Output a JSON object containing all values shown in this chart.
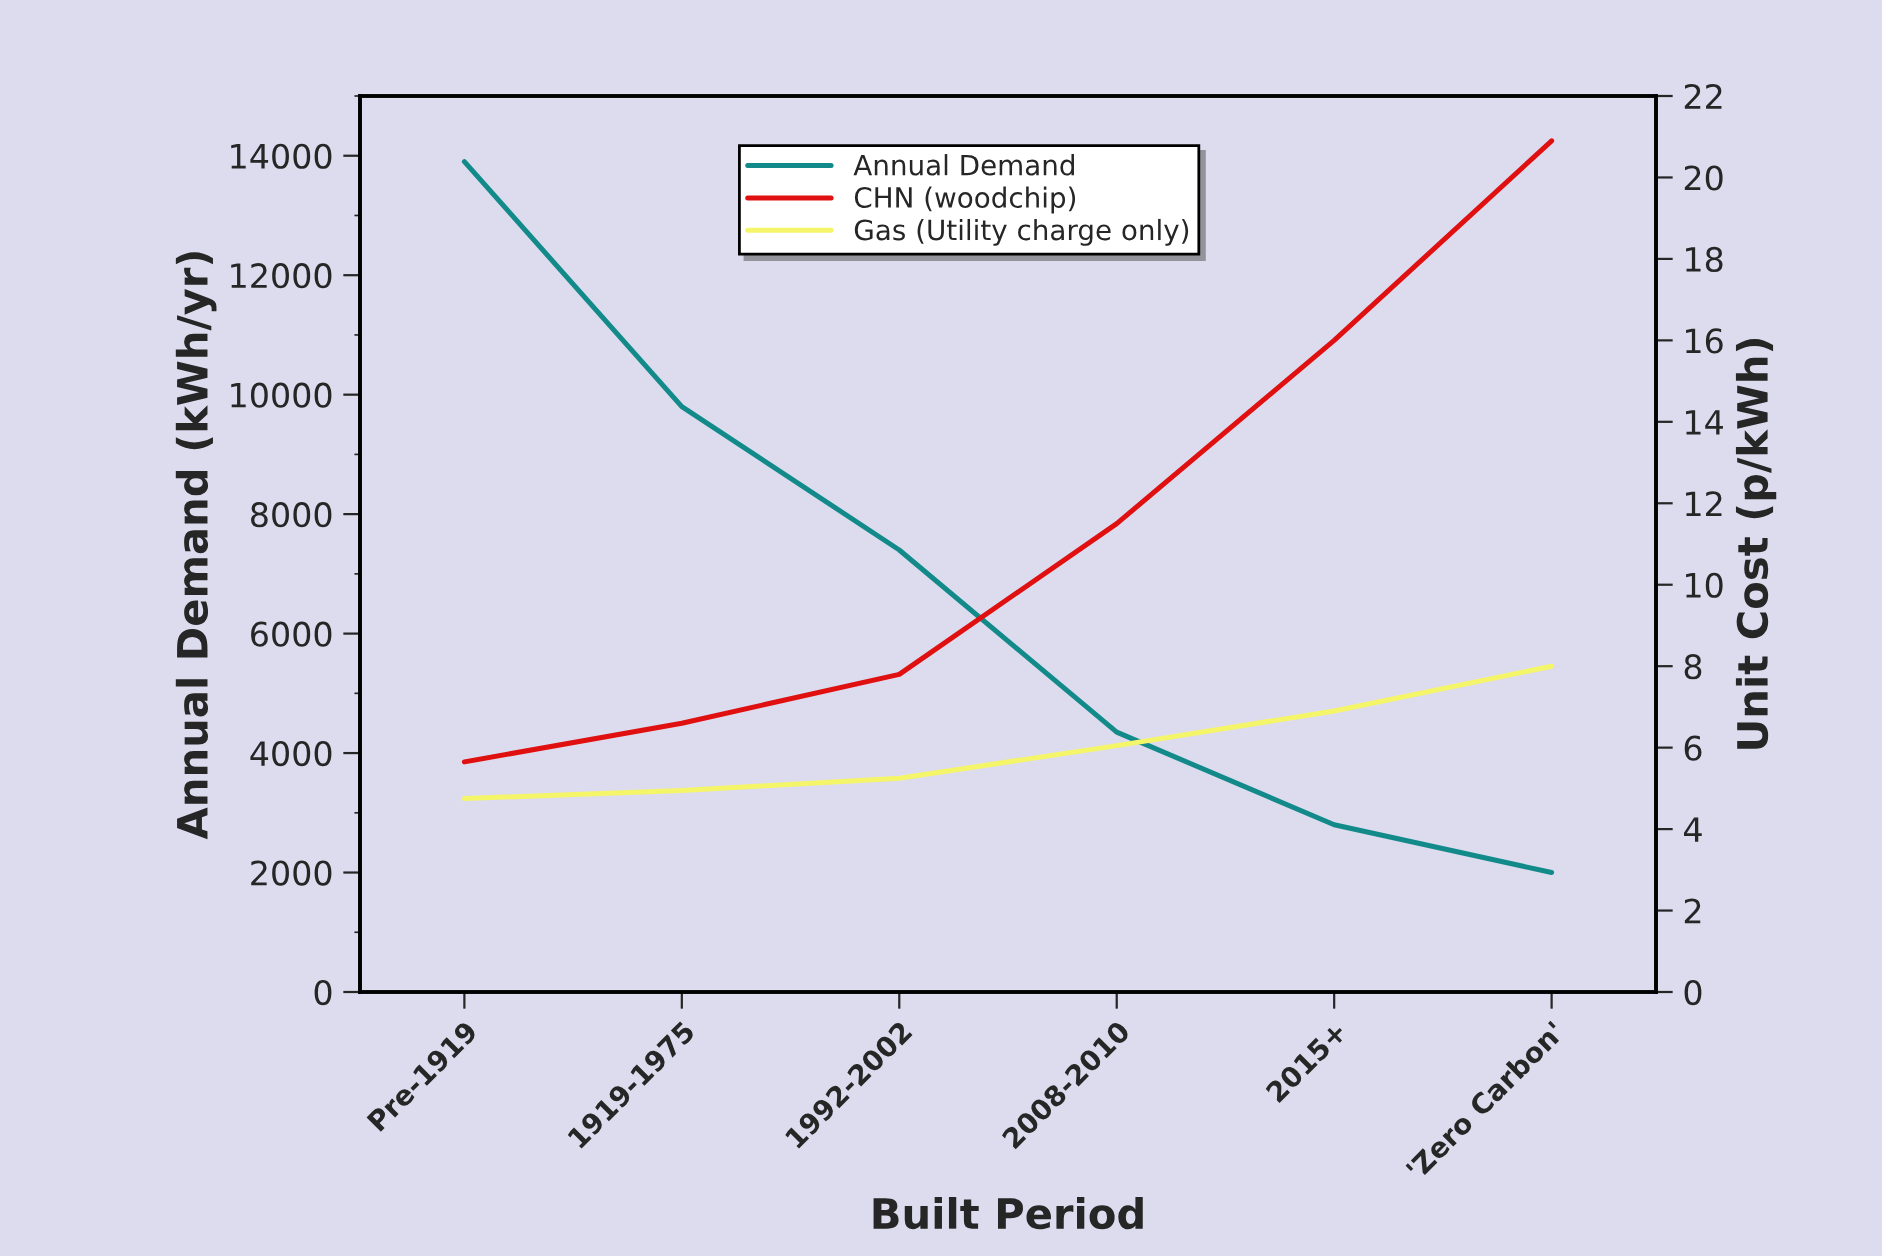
{
  "chart_data": {
    "type": "line",
    "xlabel": "Built Period",
    "ylabel": "Annual Demand (kWh/yr)",
    "y2label": "Unit Cost (p/kWh)",
    "categories": [
      "Pre-1919",
      "1919-1975",
      "1992-2002",
      "2008-2010",
      "2015+",
      "'Zero Carbon'"
    ],
    "series": [
      {
        "name": "Annual Demand",
        "color": "#138a8a",
        "values": [
          13900,
          9800,
          7400,
          4350,
          2800,
          2000
        ]
      },
      {
        "name": "CHN (woodchip)",
        "color": "#e01010",
        "values": [
          5.65,
          6.6,
          7.8,
          11.5,
          16.0,
          20.9
        ],
        "axis": "y2"
      },
      {
        "name": "Gas (Utility charge only)",
        "color": "#f5f56a",
        "values": [
          4.75,
          4.95,
          5.25,
          6.05,
          6.9,
          8.0
        ],
        "axis": "y2"
      }
    ],
    "ylim": [
      0,
      15000
    ],
    "yticks": [
      0,
      2000,
      4000,
      6000,
      8000,
      10000,
      12000,
      14000
    ],
    "y2lim": [
      0,
      22
    ],
    "y2ticks": [
      0,
      2,
      4,
      6,
      8,
      10,
      12,
      14,
      16,
      18,
      20,
      22
    ],
    "legend": "top",
    "grid": false,
    "marker": "none",
    "line_style": "solid"
  }
}
